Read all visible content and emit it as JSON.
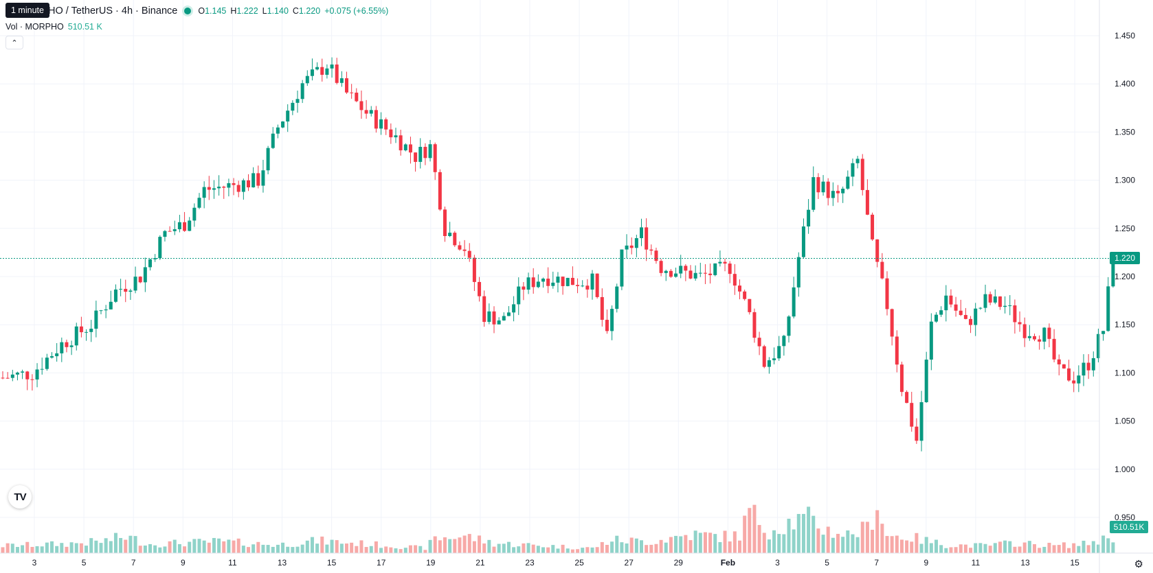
{
  "legend": {
    "symbol": "HO / TetherUS · 4h · Binance",
    "open_label": "O",
    "open": "1.145",
    "high_label": "H",
    "high": "1.222",
    "low_label": "L",
    "low": "1.140",
    "close_label": "C",
    "close": "1.220",
    "change": "+0.075 (+6.55%)",
    "tooltip": "1 minute"
  },
  "volume_legend": {
    "label": "Vol · MORPHO",
    "value": "510.51 K"
  },
  "colors": {
    "up": "#089981",
    "down": "#f23645",
    "vol_up": "#8fd3c9",
    "vol_down": "#f7a9a7",
    "grid": "#f0f3fa"
  },
  "icons": {
    "collapse": "chevron-up-icon",
    "logo": "tradingview-logo-icon",
    "settings": "gear-icon"
  },
  "chart_data": {
    "type": "candlestick",
    "timeframe": "4h",
    "y_axis": {
      "min": 0.95,
      "max": 1.45,
      "ticks": [
        "0.950",
        "1.000",
        "1.050",
        "1.100",
        "1.150",
        "1.200",
        "1.250",
        "1.300",
        "1.350",
        "1.400",
        "1.450"
      ]
    },
    "x_ticks": [
      "3",
      "5",
      "7",
      "9",
      "11",
      "13",
      "15",
      "17",
      "19",
      "21",
      "23",
      "25",
      "27",
      "29",
      "Feb",
      "3",
      "5",
      "7",
      "9",
      "11",
      "13",
      "15"
    ],
    "last_price": "1.220",
    "last_volume": "510.51K",
    "close_path": [
      [
        0,
        1.095
      ],
      [
        6,
        1.1
      ],
      [
        12,
        1.13
      ],
      [
        18,
        1.15
      ],
      [
        23,
        1.185
      ],
      [
        28,
        1.2
      ],
      [
        33,
        1.245
      ],
      [
        37,
        1.255
      ],
      [
        41,
        1.29
      ],
      [
        47,
        1.295
      ],
      [
        52,
        1.3
      ],
      [
        56,
        1.355
      ],
      [
        61,
        1.4
      ],
      [
        66,
        1.42
      ],
      [
        70,
        1.39
      ],
      [
        74,
        1.37
      ],
      [
        80,
        1.345
      ],
      [
        84,
        1.325
      ],
      [
        87,
        1.335
      ],
      [
        90,
        1.25
      ],
      [
        94,
        1.23
      ],
      [
        98,
        1.16
      ],
      [
        102,
        1.155
      ],
      [
        106,
        1.19
      ],
      [
        110,
        1.2
      ],
      [
        116,
        1.195
      ],
      [
        120,
        1.195
      ],
      [
        123,
        1.135
      ],
      [
        126,
        1.22
      ],
      [
        130,
        1.245
      ],
      [
        134,
        1.21
      ],
      [
        138,
        1.205
      ],
      [
        142,
        1.2
      ],
      [
        148,
        1.21
      ],
      [
        152,
        1.16
      ],
      [
        155,
        1.11
      ],
      [
        159,
        1.13
      ],
      [
        162,
        1.22
      ],
      [
        165,
        1.3
      ],
      [
        170,
        1.28
      ],
      [
        174,
        1.32
      ],
      [
        177,
        1.23
      ],
      [
        180,
        1.17
      ],
      [
        183,
        1.085
      ],
      [
        186,
        1.03
      ],
      [
        189,
        1.15
      ],
      [
        192,
        1.18
      ],
      [
        196,
        1.15
      ],
      [
        200,
        1.175
      ],
      [
        204,
        1.17
      ],
      [
        208,
        1.145
      ],
      [
        212,
        1.14
      ],
      [
        215,
        1.1
      ],
      [
        218,
        1.095
      ],
      [
        221,
        1.11
      ],
      [
        224,
        1.145
      ],
      [
        226,
        1.22
      ]
    ],
    "volume_path": [
      [
        0,
        0.18
      ],
      [
        12,
        0.22
      ],
      [
        20,
        0.28
      ],
      [
        25,
        0.4
      ],
      [
        30,
        0.22
      ],
      [
        44,
        0.28
      ],
      [
        56,
        0.2
      ],
      [
        64,
        0.3
      ],
      [
        72,
        0.24
      ],
      [
        86,
        0.12
      ],
      [
        88,
        0.35
      ],
      [
        94,
        0.42
      ],
      [
        100,
        0.24
      ],
      [
        110,
        0.18
      ],
      [
        120,
        0.12
      ],
      [
        124,
        0.32
      ],
      [
        132,
        0.28
      ],
      [
        140,
        0.45
      ],
      [
        148,
        0.4
      ],
      [
        150,
        0.45
      ],
      [
        152,
        1.0
      ],
      [
        156,
        0.55
      ],
      [
        160,
        0.75
      ],
      [
        164,
        0.82
      ],
      [
        168,
        0.55
      ],
      [
        172,
        0.45
      ],
      [
        176,
        0.6
      ],
      [
        178,
        1.25
      ],
      [
        180,
        0.42
      ],
      [
        184,
        0.4
      ],
      [
        192,
        0.2
      ],
      [
        200,
        0.18
      ],
      [
        206,
        0.25
      ],
      [
        214,
        0.18
      ],
      [
        220,
        0.22
      ],
      [
        226,
        0.4
      ]
    ]
  }
}
